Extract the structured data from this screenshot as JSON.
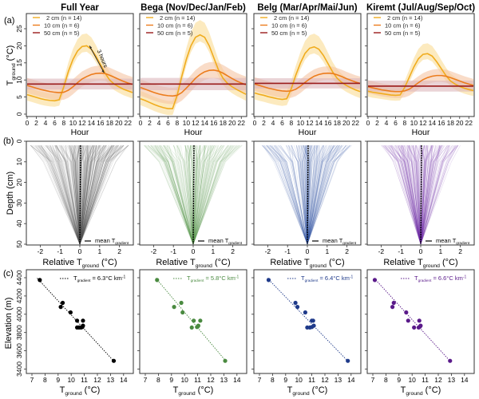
{
  "figure": {
    "row_labels": [
      "(a)",
      "(b)",
      "(c)"
    ],
    "panel_titles": [
      "Full Year",
      "Bega (Nov/Dec/Jan/Feb)",
      "Belg (Mar/Apr/Mai/Jun)",
      "Kiremt (Jul/Aug/Sep/Oct)"
    ]
  },
  "colors": {
    "d2": "#f0ac1e",
    "d2_band": "#fbe6b4",
    "d10": "#ec7c1c",
    "d10_band": "#f5c4a4",
    "d50": "#9a1b1b",
    "d50_band": "#dcb7bc",
    "season": [
      "#000000",
      "#4a8a40",
      "#1f3a8a",
      "#5a1a8a"
    ],
    "season_lines": [
      "#555555",
      "#5e9a55",
      "#3a56a8",
      "#6e2ea8"
    ]
  },
  "chart_data": [
    {
      "type": "line",
      "row": "a",
      "title": "Diurnal ground temperature cycle",
      "xlabel": "Hour",
      "ylabel": "T_ground (°C)",
      "ylabel_main": "T",
      "ylabel_sub": "ground",
      "ylabel_unit": "(°C)",
      "xlim": [
        0,
        23
      ],
      "ylim": [
        -0.5,
        26.5
      ],
      "xticks": [
        0,
        2,
        4,
        6,
        8,
        10,
        12,
        14,
        16,
        18,
        20,
        22
      ],
      "yticks": [
        0,
        5,
        10,
        15,
        20,
        25
      ],
      "legend": [
        "2 cm (n = 14)",
        "10 cm (n = 6)",
        "50 cm (n = 5)"
      ],
      "legend_position": "top-left",
      "annotation": "3 hours",
      "hours": [
        0,
        1,
        2,
        3,
        4,
        5,
        6,
        7,
        8,
        9,
        10,
        11,
        12,
        13,
        14,
        15,
        16,
        17,
        18,
        19,
        20,
        21,
        22,
        23
      ],
      "panels": [
        {
          "name": "Full Year",
          "series": [
            {
              "name": "2 cm (n = 14)",
              "values": [
                5.7,
                5.3,
                4.9,
                4.5,
                4.2,
                4.0,
                3.9,
                4.2,
                8.0,
                12.5,
                16.0,
                18.5,
                19.8,
                20.0,
                19.0,
                17.0,
                14.5,
                12.0,
                10.0,
                8.8,
                8.0,
                7.3,
                6.8,
                6.3
              ],
              "band": 3.5
            },
            {
              "name": "10 cm (n = 6)",
              "values": [
                8.4,
                8.0,
                7.6,
                7.2,
                6.9,
                6.6,
                6.4,
                6.3,
                6.4,
                7.0,
                8.0,
                9.2,
                10.3,
                11.0,
                11.6,
                11.9,
                12.0,
                11.9,
                11.4,
                10.8,
                10.2,
                9.6,
                9.1,
                8.7
              ],
              "band": 2.2
            },
            {
              "name": "50 cm (n = 5)",
              "values": [
                8.8,
                8.8,
                8.8,
                8.8,
                8.8,
                8.8,
                8.8,
                8.8,
                8.8,
                8.8,
                8.8,
                8.8,
                8.8,
                8.8,
                8.8,
                8.8,
                8.8,
                8.8,
                8.8,
                8.8,
                8.8,
                8.8,
                8.8,
                8.8
              ],
              "band": 1.6
            }
          ]
        },
        {
          "name": "Bega (Nov/Dec/Jan/Feb)",
          "series": [
            {
              "name": "2 cm (n = 14)",
              "values": [
                4.5,
                4.0,
                3.4,
                2.8,
                2.3,
                1.9,
                1.6,
                1.6,
                5.5,
                11.0,
                16.0,
                20.0,
                22.5,
                23.2,
                22.5,
                20.0,
                16.5,
                13.0,
                10.5,
                9.0,
                8.0,
                7.2,
                6.5,
                5.8
              ],
              "band": 3.8
            },
            {
              "name": "10 cm (n = 6)",
              "values": [
                7.8,
                7.3,
                6.8,
                6.3,
                5.9,
                5.6,
                5.4,
                5.3,
                5.5,
                6.3,
                7.6,
                9.0,
                10.5,
                11.6,
                12.4,
                12.8,
                12.9,
                12.6,
                12.0,
                11.2,
                10.4,
                9.7,
                9.1,
                8.6
              ],
              "band": 2.4
            },
            {
              "name": "50 cm (n = 5)",
              "values": [
                8.8,
                8.8,
                8.8,
                8.8,
                8.8,
                8.8,
                8.8,
                8.8,
                8.8,
                8.8,
                8.8,
                8.8,
                8.8,
                8.8,
                8.8,
                8.8,
                8.8,
                8.8,
                8.8,
                8.8,
                8.8,
                8.8,
                8.8,
                8.8
              ],
              "band": 1.8
            }
          ]
        },
        {
          "name": "Belg (Mar/Apr/Mai/Jun)",
          "series": [
            {
              "name": "2 cm (n = 14)",
              "values": [
                6.2,
                5.8,
                5.5,
                5.1,
                4.8,
                4.5,
                4.3,
                4.5,
                7.5,
                11.5,
                15.0,
                17.8,
                19.3,
                19.7,
                19.0,
                17.2,
                14.8,
                12.4,
                10.5,
                9.3,
                8.4,
                7.7,
                7.1,
                6.6
              ],
              "band": 3.8
            },
            {
              "name": "10 cm (n = 6)",
              "values": [
                8.8,
                8.4,
                8.0,
                7.6,
                7.3,
                7.0,
                6.8,
                6.7,
                6.8,
                7.3,
                8.2,
                9.3,
                10.3,
                11.1,
                11.6,
                11.9,
                12.0,
                11.9,
                11.5,
                11.0,
                10.4,
                9.9,
                9.4,
                9.0
              ],
              "band": 2.0
            },
            {
              "name": "50 cm (n = 5)",
              "values": [
                9.0,
                9.0,
                9.0,
                9.0,
                9.0,
                9.0,
                9.0,
                9.0,
                9.0,
                9.0,
                9.0,
                9.0,
                9.0,
                9.0,
                9.0,
                9.0,
                9.0,
                9.0,
                9.0,
                9.0,
                9.0,
                9.0,
                9.0,
                9.0
              ],
              "band": 1.5
            }
          ]
        },
        {
          "name": "Kiremt (Jul/Aug/Sep/Oct)",
          "series": [
            {
              "name": "2 cm (n = 14)",
              "values": [
                6.7,
                6.4,
                6.2,
                6.0,
                5.8,
                5.6,
                5.5,
                5.6,
                7.8,
                10.8,
                13.8,
                16.2,
                17.5,
                17.7,
                17.0,
                15.3,
                13.3,
                11.3,
                9.7,
                8.8,
                8.1,
                7.6,
                7.2,
                6.9
              ],
              "band": 3.2
            },
            {
              "name": "10 cm (n = 6)",
              "values": [
                8.0,
                7.7,
                7.4,
                7.1,
                6.9,
                6.7,
                6.6,
                6.6,
                6.8,
                7.3,
                8.2,
                9.2,
                10.1,
                10.7,
                11.1,
                11.3,
                11.3,
                11.1,
                10.7,
                10.2,
                9.7,
                9.2,
                8.8,
                8.4
              ],
              "band": 1.9
            },
            {
              "name": "50 cm (n = 5)",
              "values": [
                8.2,
                8.2,
                8.2,
                8.2,
                8.2,
                8.2,
                8.2,
                8.2,
                8.2,
                8.2,
                8.2,
                8.2,
                8.2,
                8.2,
                8.2,
                8.2,
                8.2,
                8.2,
                8.2,
                8.2,
                8.2,
                8.2,
                8.2,
                8.2
              ],
              "band": 1.6
            }
          ]
        }
      ]
    },
    {
      "type": "line",
      "row": "b",
      "title": "Vertical temperature profiles",
      "xlabel": "Relative T_ground (°C)",
      "xlabel_main": "Relative T",
      "xlabel_sub": "ground",
      "xlabel_unit": "(°C)",
      "ylabel": "Depth (cm)",
      "xlim": [
        -2.7,
        2.7
      ],
      "ylim": [
        50,
        0
      ],
      "xticks": [
        -2,
        -1,
        0,
        1,
        2
      ],
      "yticks": [
        0,
        10,
        20,
        30,
        40,
        50
      ],
      "legend": [
        "mean T_gradient"
      ],
      "legend_main": "mean T",
      "legend_sub": "gradient",
      "legend_position": "bottom-right",
      "depths": [
        2,
        10,
        50
      ],
      "panels": [
        {
          "name": "Full Year",
          "spread_2cm": 2.5,
          "spread_10cm": 1.8,
          "n_profiles": 260
        },
        {
          "name": "Bega",
          "spread_2cm": 2.5,
          "spread_10cm": 1.5,
          "n_profiles": 180
        },
        {
          "name": "Belg",
          "spread_2cm": 2.3,
          "spread_10cm": 1.5,
          "n_profiles": 180
        },
        {
          "name": "Kiremt",
          "spread_2cm": 2.0,
          "spread_10cm": 1.2,
          "n_profiles": 180
        }
      ]
    },
    {
      "type": "scatter",
      "row": "c",
      "title": "Elevation vs mean ground temperature",
      "xlabel": "T_ground (°C)",
      "xlabel_main": "T",
      "xlabel_sub": "ground",
      "xlabel_unit": "(°C)",
      "ylabel": "Elevation (m)",
      "xlim": [
        6.5,
        14.6
      ],
      "ylim": [
        3360,
        4470
      ],
      "xticks": [
        7,
        8,
        9,
        10,
        11,
        12,
        13,
        14
      ],
      "yticks": [
        3400,
        3600,
        3800,
        4000,
        4200,
        4400
      ],
      "legend_position": "top-right",
      "panels": [
        {
          "name": "Full Year",
          "legend": "T_gradient = 6.3°C km-1",
          "legend_value": "= 6.3°C km",
          "x": [
            7.6,
            9.2,
            9.35,
            9.95,
            10.45,
            10.9,
            10.45,
            10.6,
            10.75,
            10.85,
            10.9,
            13.25
          ],
          "y": [
            4375,
            4080,
            4125,
            4020,
            3930,
            3930,
            3855,
            3855,
            3855,
            3860,
            3875,
            3490
          ],
          "fit": [
            [
              7.4,
              4395
            ],
            [
              13.3,
              3480
            ]
          ]
        },
        {
          "name": "Bega",
          "legend": "T_gradient = 5.8°C km-1",
          "legend_value": "= 5.8°C km",
          "x": [
            7.9,
            9.2,
            9.75,
            9.85,
            10.7,
            11.2,
            10.55,
            10.95,
            11.05,
            11.0,
            13.1
          ],
          "y": [
            4375,
            4080,
            4125,
            4020,
            3930,
            3930,
            3855,
            3860,
            3875,
            3865,
            3490
          ],
          "fit": [
            [
              7.8,
              4395
            ],
            [
              13.2,
              3480
            ]
          ]
        },
        {
          "name": "Belg",
          "legend": "T_gradient = 6.4°C km-1",
          "legend_value": "= 6.4°C km",
          "x": [
            7.7,
            9.75,
            9.9,
            10.5,
            11.0,
            11.1,
            10.65,
            10.85,
            11.0,
            11.15,
            13.75
          ],
          "y": [
            4375,
            4125,
            4080,
            4020,
            3930,
            3930,
            3855,
            3855,
            3860,
            3875,
            3490
          ],
          "fit": [
            [
              7.6,
              4395
            ],
            [
              13.8,
              3480
            ]
          ]
        },
        {
          "name": "Kiremt",
          "legend": "T_gradient = 6.6°C km-1",
          "legend_value": "= 6.6°C km",
          "x": [
            7.15,
            8.6,
            8.5,
            9.55,
            9.7,
            10.55,
            10.15,
            10.5,
            10.65,
            10.6,
            12.9
          ],
          "y": [
            4375,
            4125,
            4080,
            4020,
            3930,
            3930,
            3855,
            3855,
            3875,
            3865,
            3490
          ],
          "fit": [
            [
              7.1,
              4395
            ],
            [
              12.95,
              3480
            ]
          ]
        }
      ]
    }
  ]
}
